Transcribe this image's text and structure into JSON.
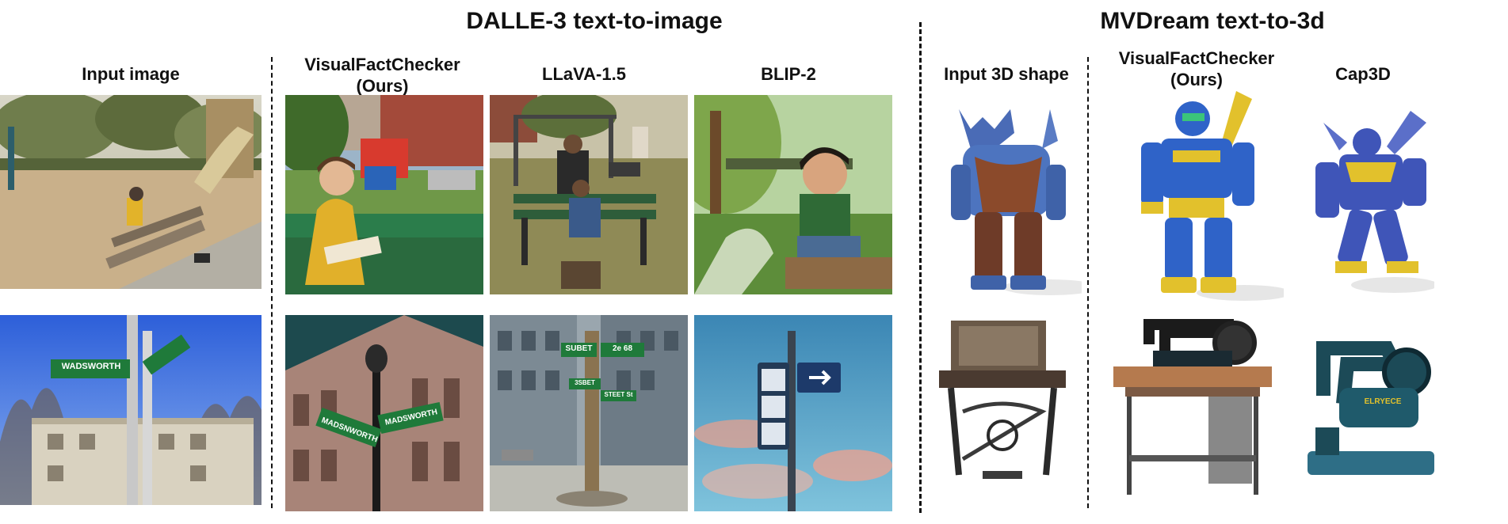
{
  "sections": {
    "dalle": "DALLE-3 text-to-image",
    "mvdream": "MVDream text-to-3d"
  },
  "columns": {
    "input_image": "Input image",
    "vfc_2d_line1": "VisualFactChecker",
    "vfc_2d_line2": "(Ours)",
    "llava": "LLaVA-1.5",
    "blip": "BLIP-2",
    "input_3d": "Input 3D shape",
    "vfc_3d_line1": "VisualFactChecker",
    "vfc_3d_line2": "(Ours)",
    "cap3d": "Cap3D"
  },
  "sign_texts": {
    "input_street_sign": "WADSWORTH",
    "vfc_sign_left": "MADSNWORTH",
    "vfc_sign_right": "MADSWORTH",
    "llava_sign_a": "SUBET",
    "llava_sign_b": "2e 68",
    "llava_sign_c": "3SBET",
    "llava_sign_d": "STEET St",
    "cap3d_machine_text": "ELRYECE"
  },
  "colors": {
    "robot_blue": "#2f63c8",
    "robot_yellow": "#e2c12c",
    "rust": "#8b4a2b",
    "sky_blue": "#3a7be0",
    "street_green": "#1f7a3a"
  }
}
